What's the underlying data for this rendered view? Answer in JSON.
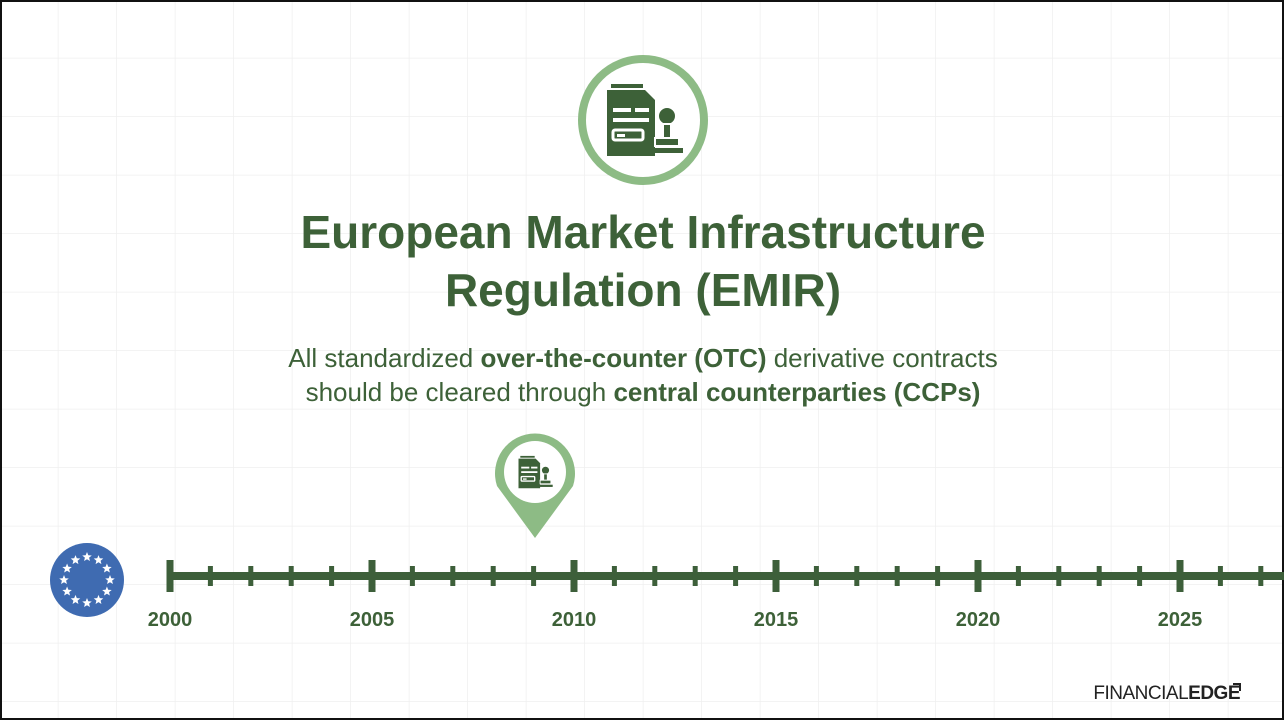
{
  "title": {
    "lines": [
      "European Market Infrastructure",
      "Regulation (EMIR)"
    ]
  },
  "subtitle": {
    "lines": [
      [
        "All standardized ",
        "over-the-counter (OTC)",
        " derivative contracts"
      ],
      [
        "should be cleared through ",
        "central counterparties (CCPs)"
      ]
    ]
  },
  "timeline": {
    "years": [
      "2000",
      "2005",
      "2010",
      "2015",
      "2020",
      "2025"
    ]
  },
  "brand": {
    "light": "FINANCIAL",
    "bold": "EDGE"
  }
}
